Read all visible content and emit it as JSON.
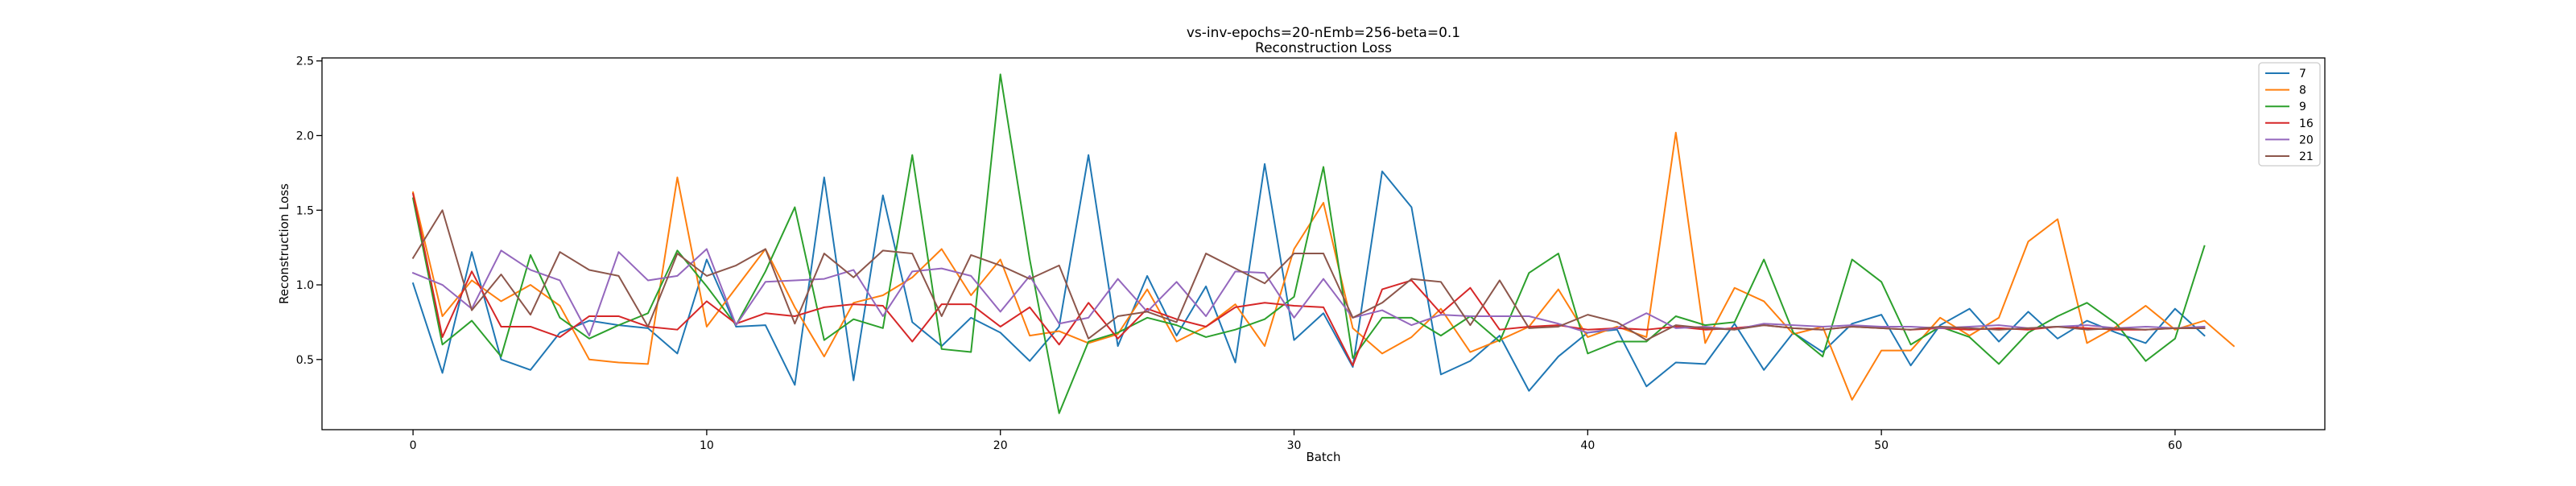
{
  "chart_data": {
    "type": "line",
    "title": "vs-inv-epochs=20-nEmb=256-beta=0.1",
    "subtitle": "Reconstruction Loss",
    "xlabel": "Batch",
    "ylabel": "Reconstruction Loss",
    "xlim": [
      -3.1,
      65.1
    ],
    "ylim": [
      0.03,
      2.52
    ],
    "xticks": [
      0,
      10,
      20,
      30,
      40,
      50,
      60
    ],
    "xtick_labels": [
      "0",
      "10",
      "20",
      "30",
      "40",
      "50",
      "60"
    ],
    "yticks": [
      0.5,
      1.0,
      1.5,
      2.0,
      2.5
    ],
    "ytick_labels": [
      "0.5",
      "1.0",
      "1.5",
      "2.0",
      "2.5"
    ],
    "grid": false,
    "legend_position": "upper right",
    "series": [
      {
        "name": "7",
        "color": "#1f77b4",
        "values": [
          1.01,
          0.41,
          1.22,
          0.5,
          0.43,
          0.68,
          0.76,
          0.73,
          0.71,
          0.54,
          1.17,
          0.72,
          0.73,
          0.33,
          1.72,
          0.36,
          1.6,
          0.75,
          0.59,
          0.78,
          0.68,
          0.49,
          0.72,
          1.87,
          0.59,
          1.06,
          0.66,
          0.99,
          0.48,
          1.81,
          0.63,
          0.81,
          0.45,
          1.76,
          1.52,
          0.4,
          0.49,
          0.66,
          0.29,
          0.52,
          0.68,
          0.7,
          0.32,
          0.48,
          0.47,
          0.74,
          0.43,
          0.68,
          0.55,
          0.74,
          0.8,
          0.46,
          0.73,
          0.84,
          0.62,
          0.82,
          0.64,
          0.76,
          0.68,
          0.61,
          0.84,
          0.66
        ]
      },
      {
        "name": "8",
        "color": "#ff7f0e",
        "values": [
          1.62,
          0.79,
          1.03,
          0.89,
          1.0,
          0.86,
          0.5,
          0.48,
          0.47,
          1.72,
          0.72,
          0.98,
          1.24,
          0.85,
          0.52,
          0.88,
          0.93,
          1.05,
          1.24,
          0.93,
          1.17,
          0.66,
          0.69,
          0.61,
          0.67,
          0.97,
          0.62,
          0.72,
          0.87,
          0.59,
          1.24,
          1.55,
          0.71,
          0.54,
          0.65,
          0.84,
          0.55,
          0.63,
          0.72,
          0.97,
          0.65,
          0.72,
          0.65,
          2.02,
          0.61,
          0.98,
          0.89,
          0.67,
          0.72,
          0.23,
          0.56,
          0.56,
          0.78,
          0.66,
          0.78,
          1.29,
          1.44,
          0.61,
          0.72,
          0.86,
          0.7,
          0.76,
          0.59
        ]
      },
      {
        "name": "9",
        "color": "#2ca02c",
        "values": [
          1.58,
          0.6,
          0.76,
          0.52,
          1.2,
          0.78,
          0.64,
          0.73,
          0.81,
          1.23,
          0.99,
          0.73,
          1.09,
          1.52,
          0.63,
          0.77,
          0.71,
          1.87,
          0.57,
          0.55,
          2.41,
          1.17,
          0.14,
          0.62,
          0.68,
          0.78,
          0.73,
          0.65,
          0.7,
          0.77,
          0.92,
          1.79,
          0.51,
          0.78,
          0.78,
          0.66,
          0.79,
          0.62,
          1.08,
          1.21,
          0.54,
          0.62,
          0.62,
          0.79,
          0.73,
          0.75,
          1.17,
          0.68,
          0.52,
          1.17,
          1.02,
          0.6,
          0.72,
          0.65,
          0.47,
          0.68,
          0.79,
          0.88,
          0.74,
          0.49,
          0.64,
          1.26
        ]
      },
      {
        "name": "16",
        "color": "#d62728",
        "values": [
          1.61,
          0.65,
          1.09,
          0.72,
          0.72,
          0.65,
          0.79,
          0.79,
          0.72,
          0.7,
          0.89,
          0.74,
          0.81,
          0.79,
          0.85,
          0.87,
          0.86,
          0.62,
          0.87,
          0.87,
          0.72,
          0.85,
          0.6,
          0.88,
          0.64,
          0.84,
          0.77,
          0.72,
          0.85,
          0.88,
          0.86,
          0.85,
          0.46,
          0.97,
          1.03,
          0.81,
          0.98,
          0.7,
          0.72,
          0.73,
          0.7,
          0.71,
          0.7,
          0.72,
          0.7,
          0.71,
          0.73,
          0.71,
          0.7,
          0.72,
          0.71,
          0.7,
          0.71,
          0.7,
          0.71,
          0.7,
          0.72,
          0.71,
          0.7,
          0.7,
          0.71,
          0.71
        ]
      },
      {
        "name": "20",
        "color": "#9467bd",
        "values": [
          1.08,
          1.0,
          0.84,
          1.23,
          1.1,
          1.03,
          0.66,
          1.22,
          1.03,
          1.06,
          1.24,
          0.73,
          1.02,
          1.03,
          1.04,
          1.1,
          0.79,
          1.09,
          1.11,
          1.06,
          0.82,
          1.06,
          0.74,
          0.78,
          1.04,
          0.82,
          1.02,
          0.79,
          1.09,
          1.08,
          0.78,
          1.04,
          0.78,
          0.83,
          0.73,
          0.8,
          0.79,
          0.79,
          0.79,
          0.74,
          0.68,
          0.71,
          0.81,
          0.71,
          0.72,
          0.7,
          0.74,
          0.73,
          0.72,
          0.73,
          0.72,
          0.72,
          0.71,
          0.72,
          0.73,
          0.71,
          0.72,
          0.73,
          0.71,
          0.72,
          0.71,
          0.72
        ]
      },
      {
        "name": "21",
        "color": "#8c564b",
        "values": [
          1.18,
          1.5,
          0.83,
          1.07,
          0.8,
          1.22,
          1.1,
          1.06,
          0.72,
          1.21,
          1.06,
          1.13,
          1.24,
          0.74,
          1.21,
          1.05,
          1.23,
          1.21,
          0.79,
          1.2,
          1.13,
          1.04,
          1.13,
          0.64,
          0.79,
          0.82,
          0.75,
          1.21,
          1.11,
          1.01,
          1.21,
          1.21,
          0.78,
          0.88,
          1.04,
          1.02,
          0.73,
          1.03,
          0.71,
          0.72,
          0.8,
          0.75,
          0.63,
          0.73,
          0.71,
          0.7,
          0.73,
          0.71,
          0.7,
          0.72,
          0.71,
          0.7,
          0.72,
          0.71,
          0.7,
          0.71,
          0.72,
          0.7,
          0.71,
          0.7,
          0.71,
          0.71
        ]
      }
    ]
  }
}
